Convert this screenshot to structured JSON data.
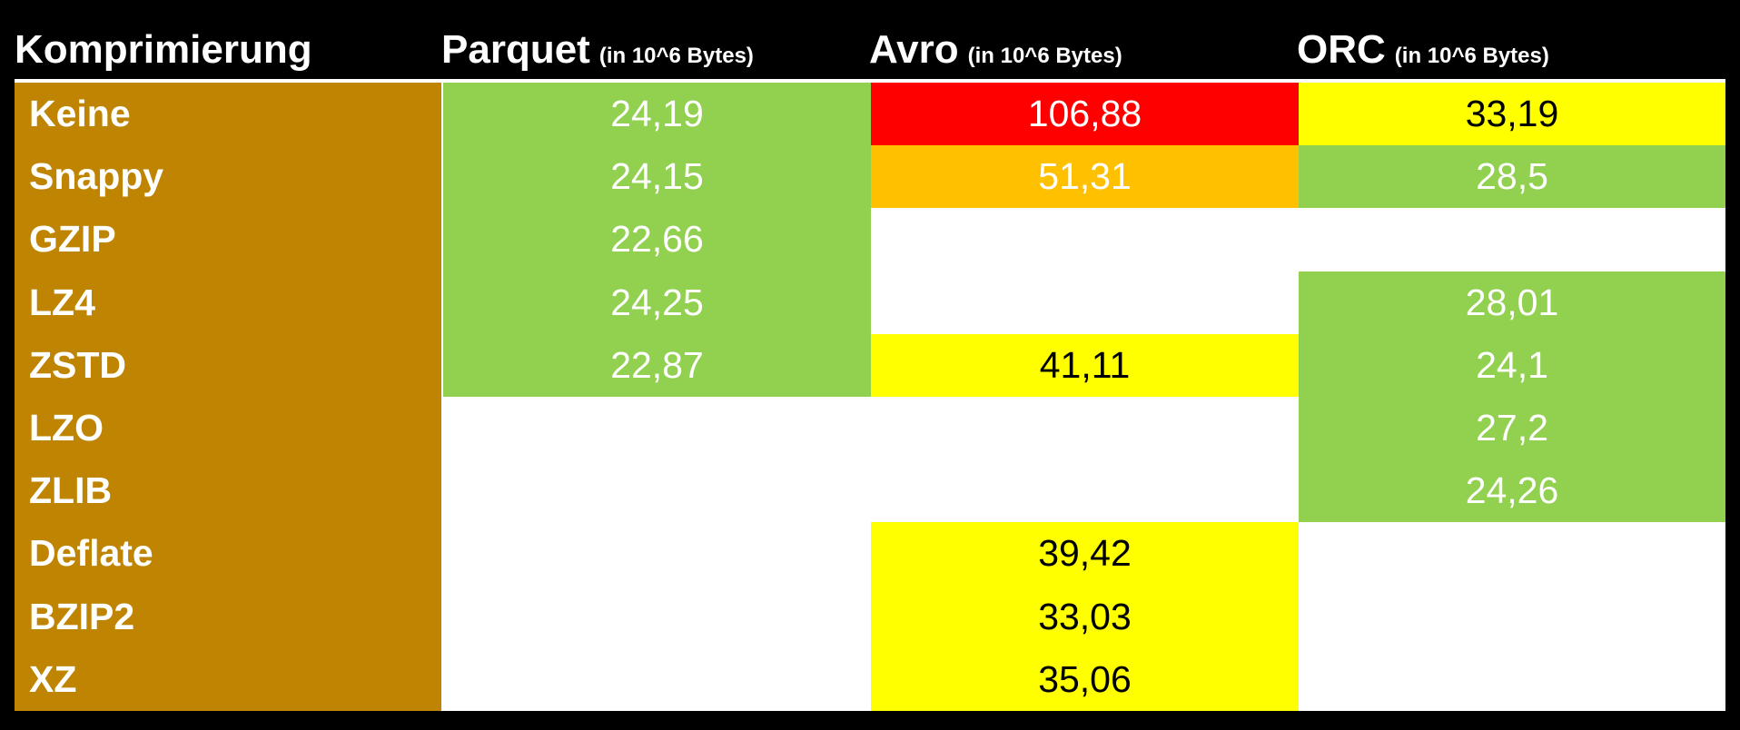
{
  "colors": {
    "background": "#000000",
    "label_column": "#bf8502",
    "green": "#92d050",
    "red": "#ff0000",
    "orange": "#ffc000",
    "yellow": "#ffff00",
    "empty": "#ffffff"
  },
  "header": {
    "col0": "Komprimierung",
    "col1": "Parquet",
    "col1_unit": "(in 10^6 Bytes)",
    "col2": "Avro",
    "col2_unit": "(in 10^6 Bytes)",
    "col3": "ORC",
    "col3_unit": "(in 10^6 Bytes)"
  },
  "rows": [
    {
      "label": "Keine",
      "parquet": "24,19",
      "avro": "106,88",
      "orc": "33,19",
      "parquet_color": "green",
      "avro_color": "red",
      "orc_color": "yellow"
    },
    {
      "label": "Snappy",
      "parquet": "24,15",
      "avro": "51,31",
      "orc": "28,5",
      "parquet_color": "green",
      "avro_color": "orange",
      "orc_color": "green"
    },
    {
      "label": "GZIP",
      "parquet": "22,66",
      "avro": "",
      "orc": "",
      "parquet_color": "green",
      "avro_color": "empty",
      "orc_color": "empty"
    },
    {
      "label": "LZ4",
      "parquet": "24,25",
      "avro": "",
      "orc": "28,01",
      "parquet_color": "green",
      "avro_color": "empty",
      "orc_color": "green"
    },
    {
      "label": "ZSTD",
      "parquet": "22,87",
      "avro": "41,11",
      "orc": "24,1",
      "parquet_color": "green",
      "avro_color": "yellow",
      "orc_color": "green"
    },
    {
      "label": "LZO",
      "parquet": "",
      "avro": "",
      "orc": "27,2",
      "parquet_color": "empty",
      "avro_color": "empty",
      "orc_color": "green"
    },
    {
      "label": "ZLIB",
      "parquet": "",
      "avro": "",
      "orc": "24,26",
      "parquet_color": "empty",
      "avro_color": "empty",
      "orc_color": "green"
    },
    {
      "label": "Deflate",
      "parquet": "",
      "avro": "39,42",
      "orc": "",
      "parquet_color": "empty",
      "avro_color": "yellow",
      "orc_color": "empty"
    },
    {
      "label": "BZIP2",
      "parquet": "",
      "avro": "33,03",
      "orc": "",
      "parquet_color": "empty",
      "avro_color": "yellow",
      "orc_color": "empty"
    },
    {
      "label": "XZ",
      "parquet": "",
      "avro": "35,06",
      "orc": "",
      "parquet_color": "empty",
      "avro_color": "yellow",
      "orc_color": "empty"
    }
  ]
}
